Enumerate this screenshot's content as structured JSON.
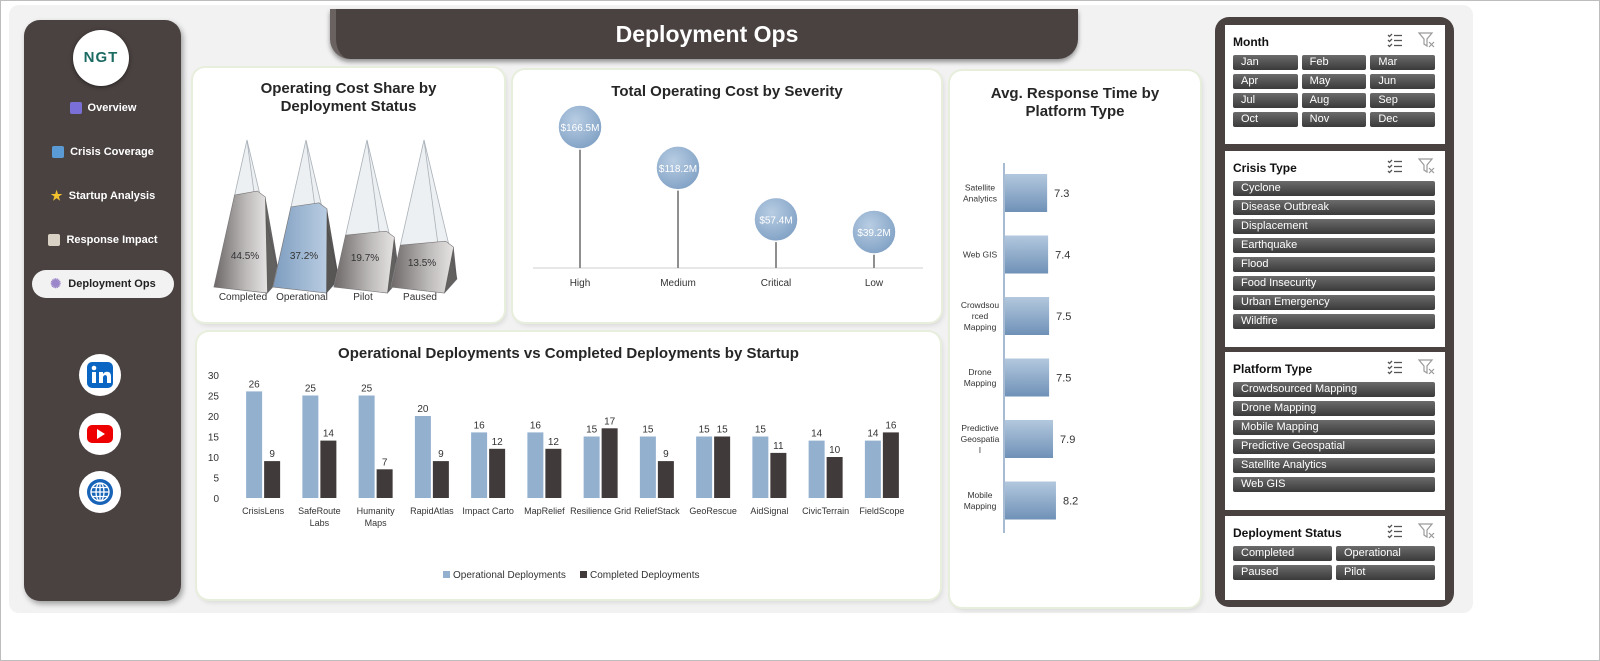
{
  "header": {
    "title": "Deployment Ops"
  },
  "sidebar": {
    "logo_text": "NGT",
    "items": [
      {
        "label": "Overview",
        "icon": "grid-chart-icon",
        "active": false
      },
      {
        "label": "Crisis Coverage",
        "icon": "line-chart-icon",
        "active": false
      },
      {
        "label": "Startup Analysis",
        "icon": "star-icon",
        "active": false
      },
      {
        "label": "Response Impact",
        "icon": "clipboard-icon",
        "active": false
      },
      {
        "label": "Deployment Ops",
        "icon": "gear-icon",
        "active": true
      }
    ],
    "social": [
      "linkedin-icon",
      "youtube-icon",
      "globe-icon"
    ]
  },
  "charts": {
    "cost_share": {
      "title": "Operating Cost Share by Deployment Status",
      "chart_data": {
        "type": "bar",
        "categories": [
          "Completed",
          "Operational",
          "Pilot",
          "Paused"
        ],
        "values": [
          44.5,
          37.2,
          19.7,
          13.5
        ],
        "labels": [
          "44.5%",
          "37.2%",
          "19.7%",
          "13.5%"
        ],
        "title": "Operating Cost Share by Deployment Status"
      }
    },
    "severity": {
      "title": "Total Operating Cost by Severity",
      "chart_data": {
        "type": "scatter",
        "categories": [
          "High",
          "Medium",
          "Critical",
          "Low"
        ],
        "values": [
          166.5,
          118.2,
          57.4,
          39.2
        ],
        "labels": [
          "$166.5M",
          "$118.2M",
          "$57.4M",
          "$39.2M"
        ],
        "title": "Total Operating Cost by Severity"
      }
    },
    "response_time": {
      "title": "Avg. Response Time by Platform Type",
      "chart_data": {
        "type": "bar",
        "orientation": "horizontal",
        "categories": [
          "Satellite Analytics",
          "Web GIS",
          "Crowdsourced Mapping",
          "Drone Mapping",
          "Predictive Geospatial",
          "Mobile Mapping"
        ],
        "category_lines": [
          [
            "Satellite",
            "Analytics"
          ],
          [
            "Web GIS"
          ],
          [
            "Crowdsou",
            "rced",
            "Mapping"
          ],
          [
            "Drone",
            "Mapping"
          ],
          [
            "Predictive",
            "Geospatia",
            "l"
          ],
          [
            "Mobile",
            "Mapping"
          ]
        ],
        "values": [
          7.3,
          7.4,
          7.5,
          7.5,
          7.9,
          8.2
        ],
        "labels": [
          "7.3",
          "7.4",
          "7.5",
          "7.5",
          "7.9",
          "8.2"
        ],
        "title": "Avg. Response Time by Platform Type"
      }
    },
    "deployments": {
      "title": "Operational Deployments vs Completed Deployments by Startup",
      "chart_data": {
        "type": "bar",
        "categories": [
          "CrisisLens",
          "SafeRoute Labs",
          "Humanity Maps",
          "RapidAtlas",
          "Impact Carto",
          "MapRelief",
          "Resilience Grid",
          "ReliefStack",
          "GeoRescue",
          "AidSignal",
          "CivicTerrain",
          "FieldScope"
        ],
        "category_lines": [
          [
            "CrisisLens"
          ],
          [
            "SafeRoute",
            "Labs"
          ],
          [
            "Humanity",
            "Maps"
          ],
          [
            "RapidAtlas"
          ],
          [
            "Impact Carto"
          ],
          [
            "MapRelief"
          ],
          [
            "Resilience Grid"
          ],
          [
            "ReliefStack"
          ],
          [
            "GeoRescue"
          ],
          [
            "AidSignal"
          ],
          [
            "CivicTerrain"
          ],
          [
            "FieldScope"
          ]
        ],
        "series": [
          {
            "name": "Operational Deployments",
            "values": [
              26,
              25,
              25,
              20,
              16,
              16,
              15,
              15,
              15,
              15,
              14,
              14
            ],
            "color": "#93b1cf"
          },
          {
            "name": "Completed Deployments",
            "values": [
              9,
              14,
              7,
              9,
              12,
              12,
              17,
              9,
              15,
              11,
              10,
              16
            ],
            "color": "#403b3a"
          }
        ],
        "ylim": [
          0,
          30
        ],
        "yticks": [
          "0",
          "5",
          "10",
          "15",
          "20",
          "25",
          "30"
        ],
        "legend": "bottom",
        "title": "Operational Deployments vs Completed Deployments by Startup"
      }
    }
  },
  "slicers": [
    {
      "title": "Month",
      "cols": 3,
      "items": [
        "Jan",
        "Feb",
        "Mar",
        "Apr",
        "May",
        "Jun",
        "Jul",
        "Aug",
        "Sep",
        "Oct",
        "Nov",
        "Dec"
      ]
    },
    {
      "title": "Crisis Type",
      "cols": 1,
      "items": [
        "Cyclone",
        "Disease Outbreak",
        "Displacement",
        "Earthquake",
        "Flood",
        "Food Insecurity",
        "Urban Emergency",
        "Wildfire"
      ]
    },
    {
      "title": "Platform Type",
      "cols": 1,
      "items": [
        "Crowdsourced Mapping",
        "Drone Mapping",
        "Mobile Mapping",
        "Predictive Geospatial",
        "Satellite Analytics",
        "Web GIS"
      ]
    },
    {
      "title": "Deployment Status",
      "cols": 2,
      "items": [
        "Completed",
        "Operational",
        "Paused",
        "Pilot"
      ]
    }
  ],
  "colors": {
    "dark": "#4a4241",
    "accent_blue": "#93b1cf",
    "dark_bar": "#403b3a"
  }
}
